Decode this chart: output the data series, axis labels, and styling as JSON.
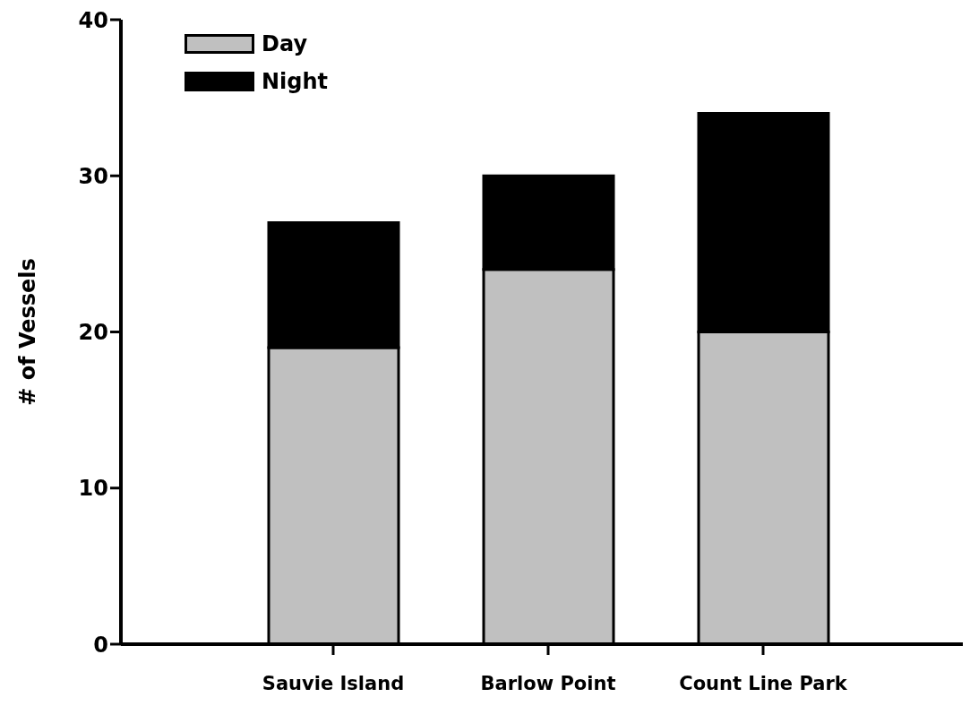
{
  "chart_data": {
    "type": "bar",
    "stacked": true,
    "ylabel": "# of Vessels",
    "categories": [
      "Sauvie Island",
      "Barlow Point",
      "Count Line Park"
    ],
    "series": [
      {
        "name": "Day",
        "color": "#c0c0c0",
        "values": [
          19,
          24,
          20
        ]
      },
      {
        "name": "Night",
        "color": "#000000",
        "values": [
          8,
          6,
          14
        ]
      }
    ],
    "ylim": [
      0,
      40
    ],
    "yticks": [
      0,
      10,
      20,
      30,
      40
    ],
    "grid": false,
    "legend": "top left"
  }
}
